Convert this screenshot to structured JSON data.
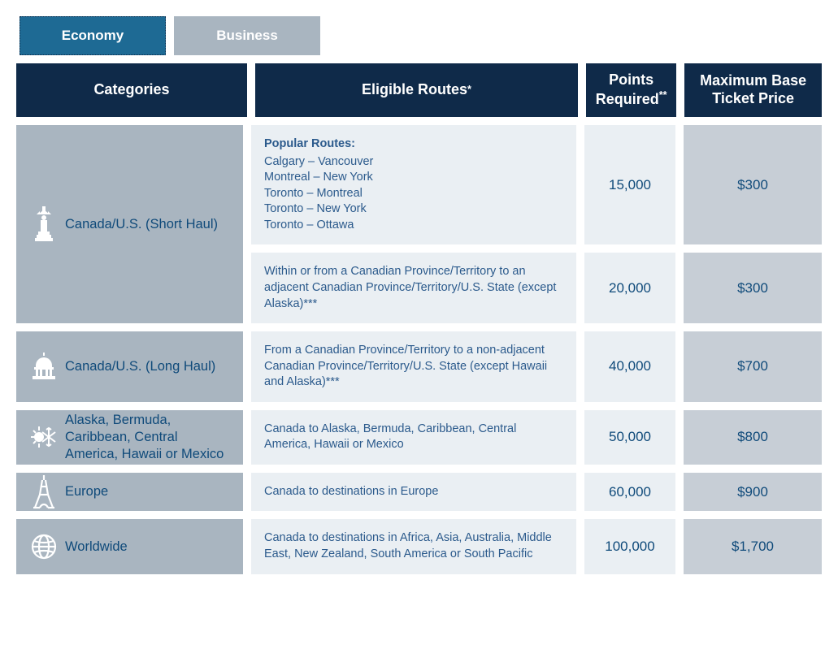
{
  "tabs": {
    "economy": "Economy",
    "business": "Business",
    "active": "economy"
  },
  "headers": {
    "categories": "Categories",
    "routes": "Eligible Routes",
    "routes_ast": "*",
    "points": "Points Required",
    "points_ast": "**",
    "price": "Maximum Base Ticket Price"
  },
  "colors": {
    "tab_active_bg": "#1e6a94",
    "tab_inactive_bg": "#a9b5c0",
    "header_bg": "#0f2a49",
    "cat_bg": "#a9b5c0",
    "route_bg": "#eaeff3",
    "price_bg": "#c7ced6",
    "text_primary": "#0f4a7a",
    "route_text": "#2b5a8c",
    "white": "#ffffff"
  },
  "categories": [
    {
      "icon": "statue-liberty",
      "label": "Canada/U.S. (Short Haul)",
      "rows": [
        {
          "popular_title": "Popular Routes:",
          "popular_list": [
            "Calgary – Vancouver",
            "Montreal – New York",
            "Toronto – Montreal",
            "Toronto – New York",
            "Toronto – Ottawa"
          ],
          "points": "15,000",
          "price": "$300"
        },
        {
          "desc": "Within or from a Canadian Province/Territory to an adjacent Canadian Province/Territory/U.S. State (except Alaska)***",
          "points": "20,000",
          "price": "$300"
        }
      ]
    },
    {
      "icon": "capitol",
      "label": "Canada/U.S. (Long Haul)",
      "rows": [
        {
          "desc": "From a Canadian Province/Territory to a non-adjacent Canadian Province/Territory/U.S. State (except Hawaii and Alaska)***",
          "points": "40,000",
          "price": "$700"
        }
      ]
    },
    {
      "icon": "sun-snow",
      "label": "Alaska, Bermuda, Caribbean, Central America, Hawaii or Mexico",
      "rows": [
        {
          "desc": "Canada to Alaska, Bermuda, Caribbean, Central America, Hawaii or Mexico",
          "points": "50,000",
          "price": "$800"
        }
      ]
    },
    {
      "icon": "eiffel",
      "label": "Europe",
      "rows": [
        {
          "desc": "Canada to destinations in Europe",
          "points": "60,000",
          "price": "$900"
        }
      ]
    },
    {
      "icon": "globe",
      "label": "Worldwide",
      "rows": [
        {
          "desc": "Canada to destinations in Africa, Asia, Australia, Middle East, New Zealand, South America or South Pacific",
          "points": "100,000",
          "price": "$1,700"
        }
      ]
    }
  ]
}
